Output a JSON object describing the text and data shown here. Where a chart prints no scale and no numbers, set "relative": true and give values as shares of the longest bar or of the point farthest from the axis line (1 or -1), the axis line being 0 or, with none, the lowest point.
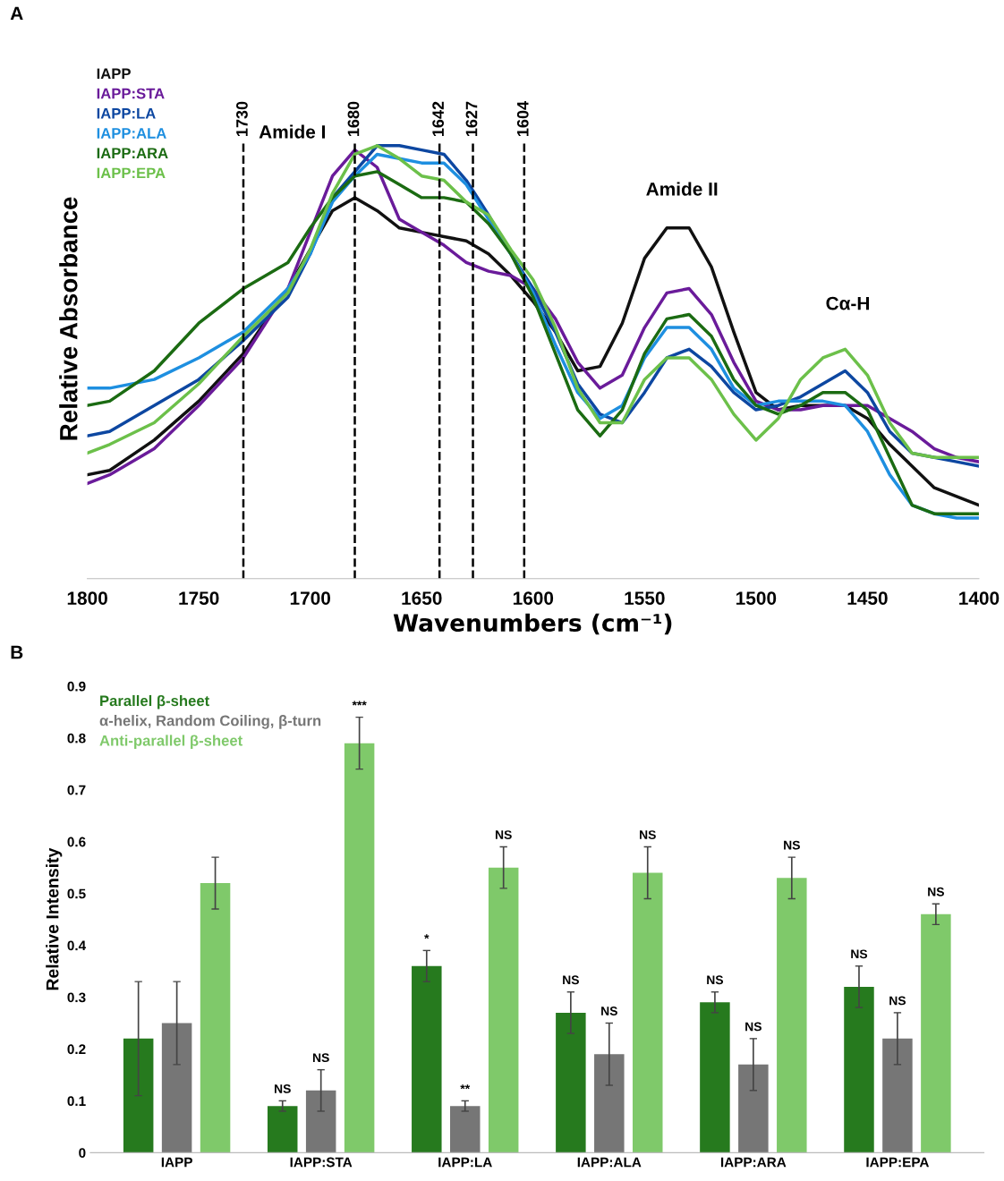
{
  "chart_data": [
    {
      "type": "line",
      "title": "A",
      "relative": true,
      "xlabel": "Wavenumbers (cm⁻¹)",
      "ylabel": "Relative Absorbance",
      "x": [
        1800,
        1790,
        1770,
        1750,
        1730,
        1710,
        1700,
        1690,
        1680,
        1670,
        1660,
        1650,
        1640,
        1630,
        1620,
        1610,
        1600,
        1590,
        1580,
        1570,
        1560,
        1550,
        1540,
        1530,
        1520,
        1510,
        1500,
        1490,
        1480,
        1470,
        1460,
        1450,
        1440,
        1430,
        1420,
        1410,
        1400
      ],
      "xlim": [
        1800,
        1400
      ],
      "xticks": [
        1800,
        1750,
        1700,
        1650,
        1600,
        1550,
        1500,
        1450,
        1400
      ],
      "tick_labels": "x",
      "legend": "top left",
      "line_style": "solid",
      "series": [
        {
          "name": "IAPP",
          "color": "#111111",
          "values": [
            0.24,
            0.25,
            0.32,
            0.41,
            0.52,
            0.67,
            0.76,
            0.85,
            0.88,
            0.85,
            0.81,
            0.8,
            0.79,
            0.78,
            0.75,
            0.7,
            0.64,
            0.57,
            0.48,
            0.49,
            0.59,
            0.74,
            0.81,
            0.81,
            0.72,
            0.57,
            0.43,
            0.39,
            0.4,
            0.4,
            0.4,
            0.37,
            0.31,
            0.26,
            0.21,
            0.19,
            0.17
          ]
        },
        {
          "name": "IAPP:STA",
          "color": "#6a1b9a",
          "values": [
            0.22,
            0.24,
            0.3,
            0.4,
            0.51,
            0.67,
            0.8,
            0.93,
            0.99,
            0.95,
            0.83,
            0.8,
            0.77,
            0.73,
            0.71,
            0.7,
            0.67,
            0.6,
            0.5,
            0.44,
            0.47,
            0.58,
            0.66,
            0.67,
            0.61,
            0.5,
            0.41,
            0.39,
            0.39,
            0.4,
            0.4,
            0.4,
            0.37,
            0.34,
            0.3,
            0.28,
            0.27
          ]
        },
        {
          "name": "IAPP:LA",
          "color": "#0d47a1",
          "values": [
            0.33,
            0.34,
            0.4,
            0.46,
            0.55,
            0.65,
            0.75,
            0.88,
            0.94,
            1.0,
            1.0,
            0.99,
            0.98,
            0.92,
            0.84,
            0.75,
            0.67,
            0.57,
            0.45,
            0.38,
            0.36,
            0.43,
            0.51,
            0.53,
            0.49,
            0.43,
            0.39,
            0.4,
            0.42,
            0.45,
            0.48,
            0.43,
            0.34,
            0.29,
            0.28,
            0.27,
            0.26
          ]
        },
        {
          "name": "IAPP:ALA",
          "color": "#1e8fe0",
          "values": [
            0.44,
            0.44,
            0.46,
            0.51,
            0.57,
            0.67,
            0.75,
            0.87,
            0.93,
            0.98,
            0.97,
            0.96,
            0.96,
            0.91,
            0.83,
            0.75,
            0.66,
            0.54,
            0.43,
            0.37,
            0.4,
            0.51,
            0.58,
            0.58,
            0.53,
            0.44,
            0.4,
            0.41,
            0.41,
            0.41,
            0.4,
            0.34,
            0.24,
            0.17,
            0.15,
            0.14,
            0.14
          ]
        },
        {
          "name": "IAPP:ARA",
          "color": "#1b6b12",
          "values": [
            0.4,
            0.41,
            0.48,
            0.59,
            0.67,
            0.73,
            0.81,
            0.88,
            0.93,
            0.94,
            0.91,
            0.88,
            0.88,
            0.87,
            0.82,
            0.75,
            0.65,
            0.52,
            0.39,
            0.33,
            0.39,
            0.52,
            0.6,
            0.61,
            0.56,
            0.46,
            0.4,
            0.38,
            0.4,
            0.43,
            0.43,
            0.39,
            0.28,
            0.17,
            0.15,
            0.15,
            0.15
          ]
        },
        {
          "name": "IAPP:EPA",
          "color": "#6cc04a",
          "values": [
            0.29,
            0.31,
            0.36,
            0.45,
            0.56,
            0.66,
            0.76,
            0.89,
            0.98,
            1.0,
            0.97,
            0.93,
            0.92,
            0.87,
            0.84,
            0.76,
            0.69,
            0.58,
            0.44,
            0.36,
            0.36,
            0.46,
            0.51,
            0.51,
            0.46,
            0.38,
            0.32,
            0.37,
            0.46,
            0.51,
            0.53,
            0.47,
            0.36,
            0.29,
            0.28,
            0.28,
            0.28
          ]
        }
      ],
      "ref_lines": [
        {
          "axis": "x",
          "value": 1730,
          "label": "1730",
          "color": "#000000",
          "line_style": "dashed"
        },
        {
          "axis": "x",
          "value": 1680,
          "label": "1680",
          "color": "#000000",
          "line_style": "dashed"
        },
        {
          "axis": "x",
          "value": 1642,
          "label": "1642",
          "color": "#000000",
          "line_style": "dashed"
        },
        {
          "axis": "x",
          "value": 1627,
          "label": "1627",
          "color": "#000000",
          "line_style": "dashed"
        },
        {
          "axis": "x",
          "value": 1604,
          "label": "1604",
          "color": "#000000",
          "line_style": "dashed"
        }
      ],
      "annotations": [
        "Amide I",
        "Amide II",
        "Cα-H"
      ]
    },
    {
      "type": "bar",
      "title": "B",
      "ylabel": "Relative Intensity",
      "categories": [
        "IAPP",
        "IAPP:STA",
        "IAPP:LA",
        "IAPP:ALA",
        "IAPP:ARA",
        "IAPP:EPA"
      ],
      "ylim": [
        0,
        0.9
      ],
      "yticks": [
        {
          "value": 0,
          "label": "0"
        },
        0.1,
        0.2,
        0.3,
        0.4,
        0.5,
        0.6,
        0.7,
        0.8,
        0.9
      ],
      "legend": "top left",
      "grid": false,
      "series": [
        {
          "name": "Parallel β-sheet",
          "color": "#267a1e",
          "values": [
            0.22,
            0.09,
            0.36,
            0.27,
            0.29,
            0.32
          ],
          "errors": [
            0.11,
            0.01,
            0.03,
            0.04,
            0.02,
            0.04
          ],
          "value_labels": [
            null,
            "NS",
            "*",
            "NS",
            "NS",
            "NS"
          ]
        },
        {
          "name": "α-helix, Random Coiling, β-turn",
          "color": "#767676",
          "values": [
            0.25,
            0.12,
            0.09,
            0.19,
            0.17,
            0.22
          ],
          "errors": [
            0.08,
            0.04,
            0.01,
            0.06,
            0.05,
            0.05
          ],
          "value_labels": [
            null,
            "NS",
            "**",
            "NS",
            "NS",
            "NS"
          ]
        },
        {
          "name": "Anti-parallel β-sheet",
          "color": "#7fc96a",
          "values": [
            0.52,
            0.79,
            0.55,
            0.54,
            0.53,
            0.46
          ],
          "errors": [
            0.05,
            0.05,
            0.04,
            0.05,
            0.04,
            0.02
          ],
          "value_labels": [
            null,
            "***",
            "NS",
            "NS",
            "NS",
            "NS"
          ]
        }
      ]
    }
  ]
}
